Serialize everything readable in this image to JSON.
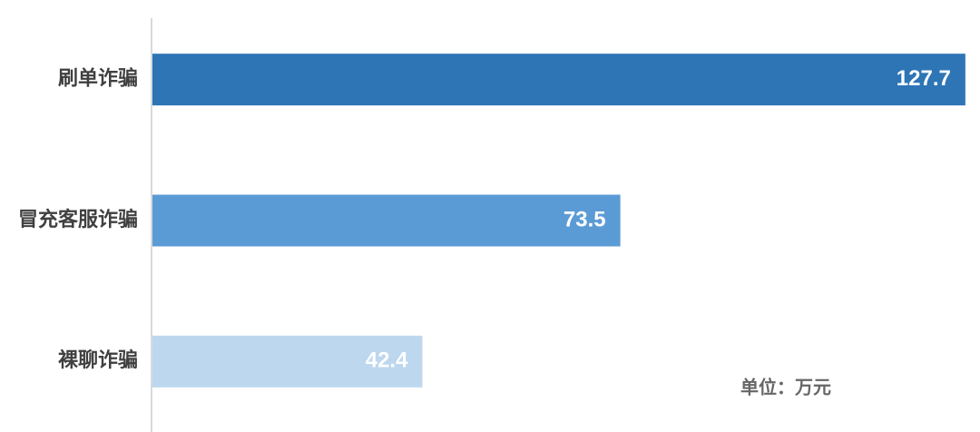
{
  "chart_data": {
    "type": "hbar",
    "categories": [
      "刷单诈骗",
      "冒充客服诈骗",
      "裸聊诈骗"
    ],
    "values": [
      127.7,
      73.5,
      42.4
    ],
    "colors": [
      "#2e75b6",
      "#5b9bd5",
      "#bdd7ee"
    ],
    "xlim": [
      0,
      130
    ],
    "annotation": "单位：万元"
  }
}
